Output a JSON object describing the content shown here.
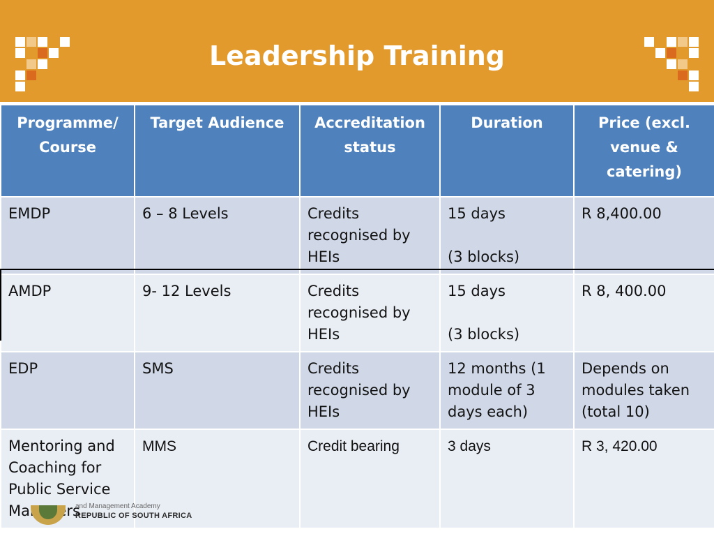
{
  "slide": {
    "title": "Leadership Training",
    "accent_color": "#e39a2c",
    "header_color": "#4f81bd"
  },
  "table": {
    "headers": [
      "Programme/ Course",
      "Target Audience",
      "Accreditation status",
      "Duration",
      "Price (excl. venue & catering)"
    ],
    "rows": [
      {
        "programme": "EMDP",
        "audience": "6 – 8 Levels",
        "accreditation": "Credits recognised by HEIs",
        "duration": "15 days",
        "duration_note": "(3 blocks)",
        "price": "R 8,400.00"
      },
      {
        "programme": "AMDP",
        "audience": "9- 12 Levels",
        "accreditation": "Credits recognised by HEIs",
        "duration": "15 days",
        "duration_note": "(3 blocks)",
        "price": "R 8, 400.00"
      },
      {
        "programme": "EDP",
        "audience": "SMS",
        "accreditation": "Credits recognised by HEIs",
        "duration": "12 months (1 module of 3 days each)",
        "price": "Depends on modules taken (total 10)"
      },
      {
        "programme": "Mentoring and Coaching for Public Service Managers",
        "audience": "MMS",
        "accreditation": "Credit bearing",
        "duration": "3 days",
        "price": "R 3, 420.00"
      }
    ]
  },
  "footer": {
    "org_line": "and Management Academy",
    "country": "REPUBLIC OF SOUTH AFRICA"
  },
  "icons": [
    "checker-logo-icon",
    "coat-of-arms-icon"
  ]
}
